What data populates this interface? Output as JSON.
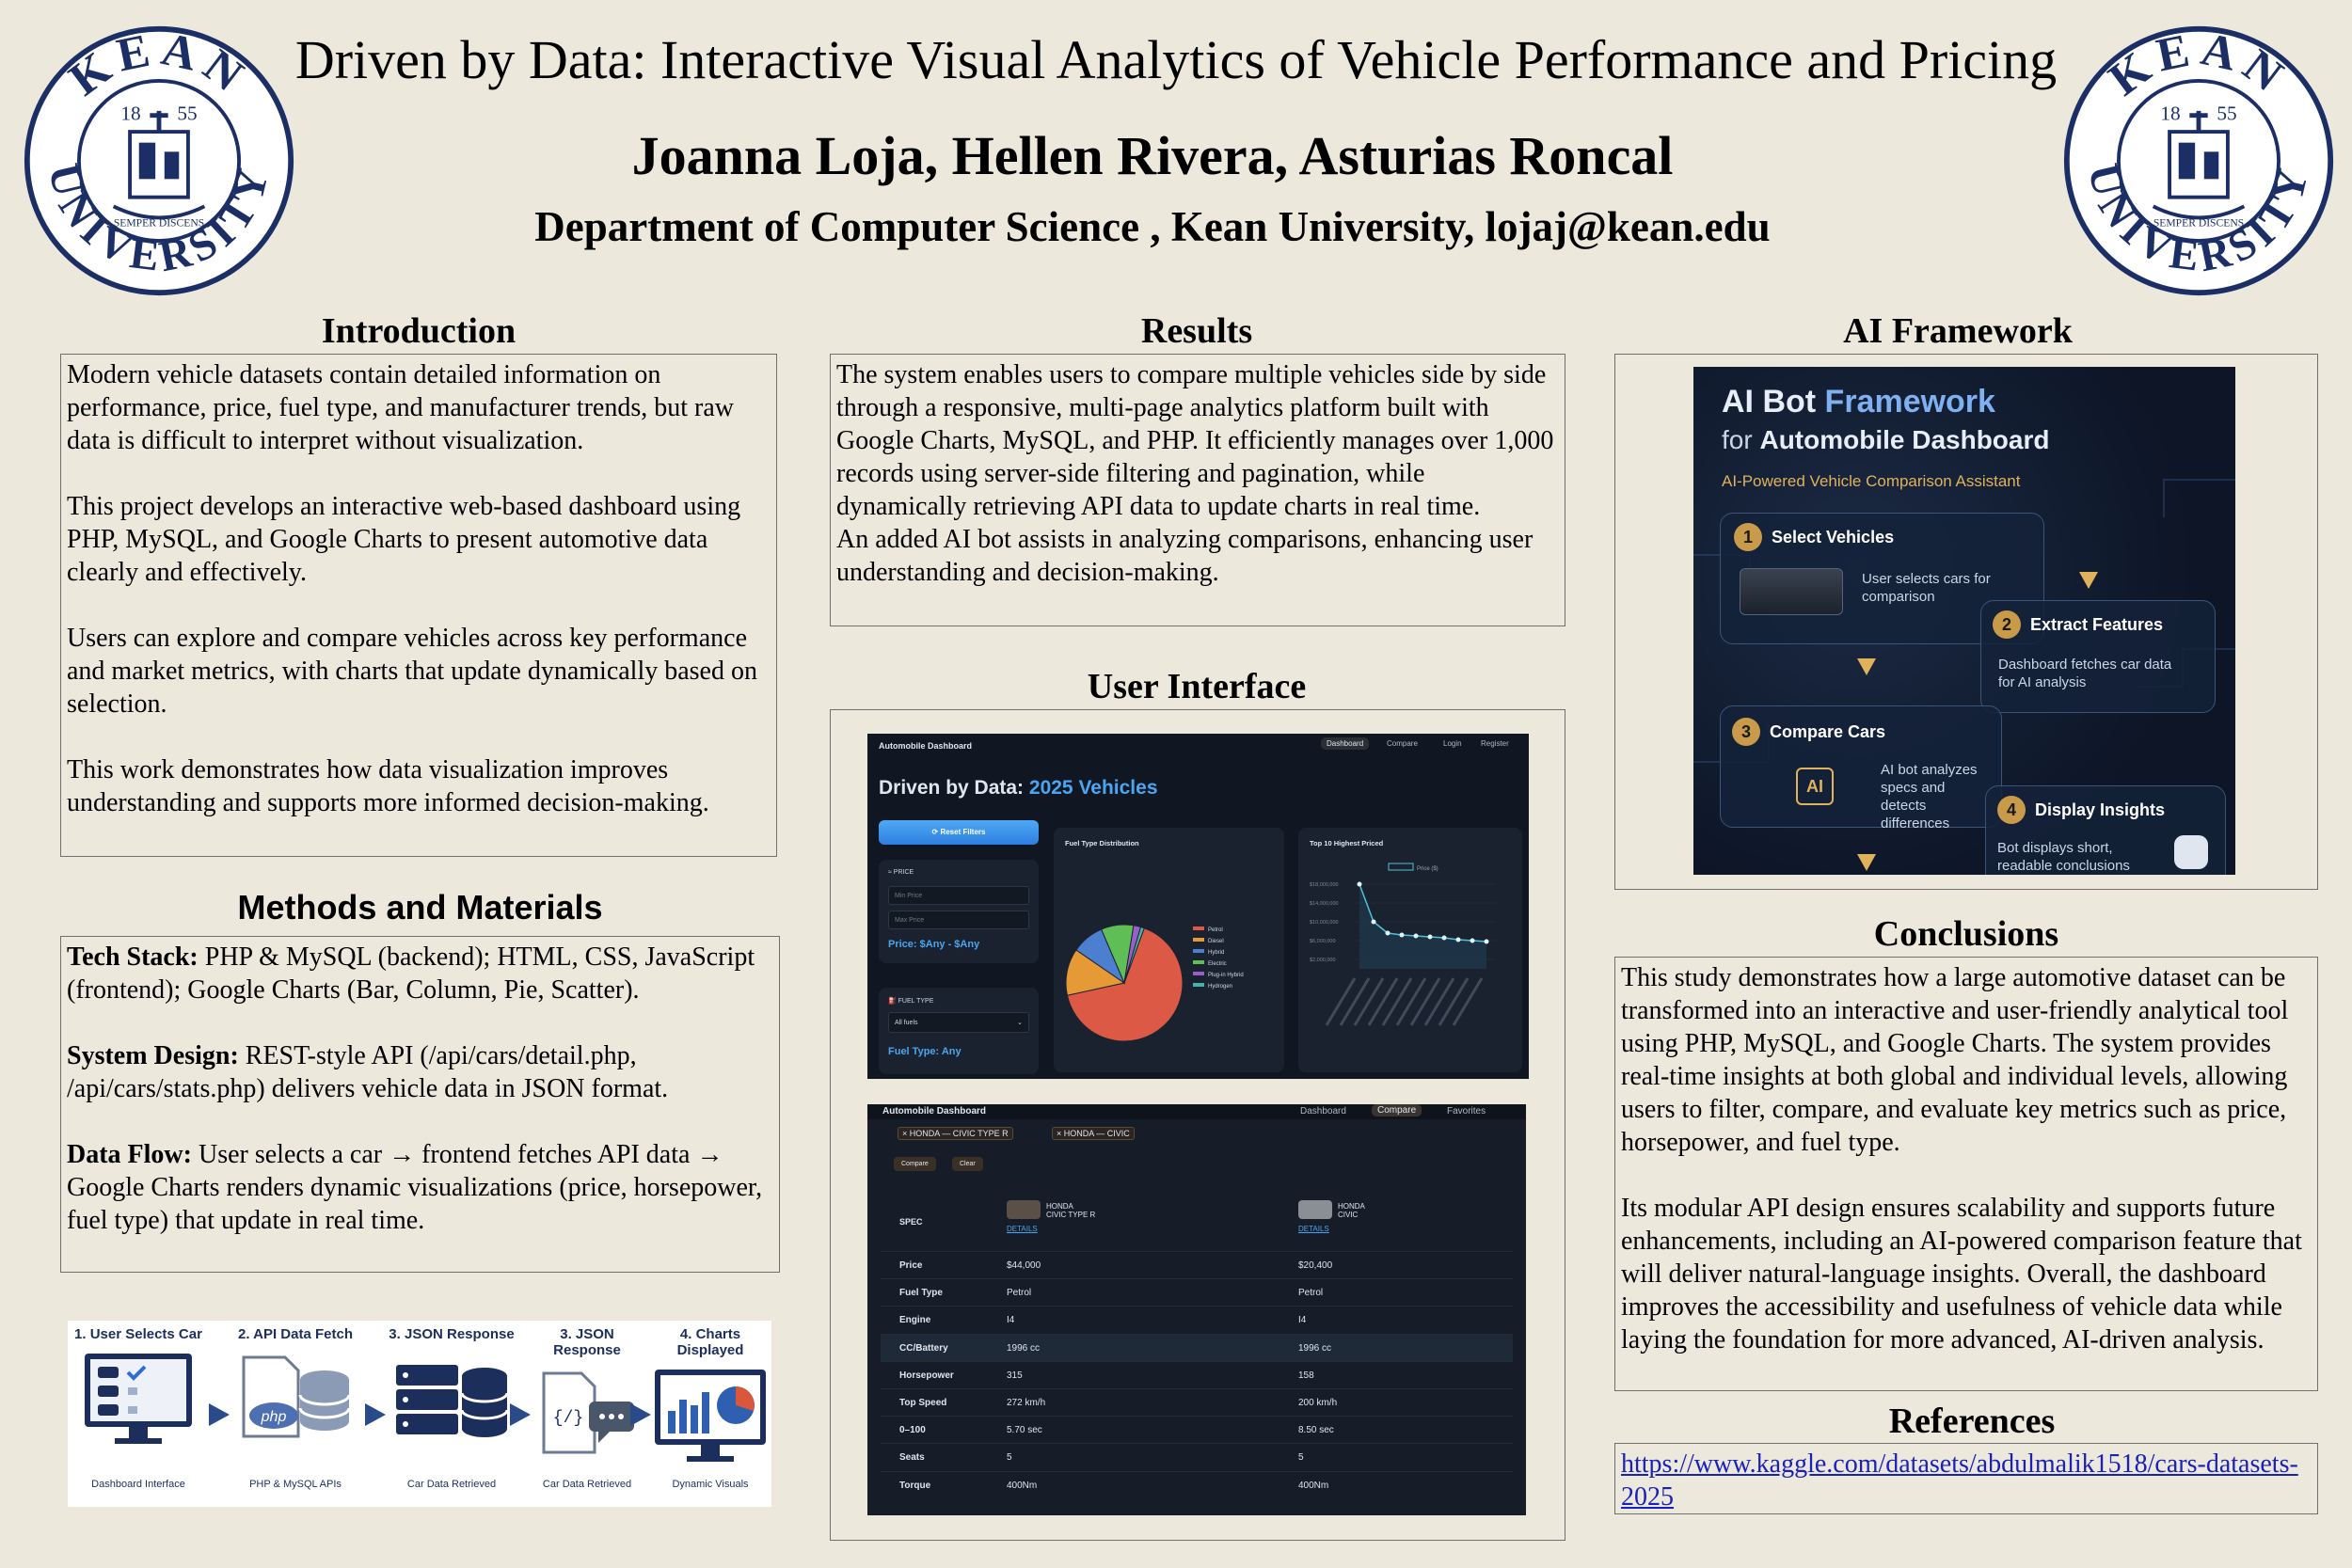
{
  "header": {
    "title": "Driven by Data: Interactive Visual Analytics of Vehicle Performance and Pricing",
    "authors": "Joanna Loja, Hellen Rivera, Asturias Roncal",
    "affiliation": "Department of Computer Science , Kean University, lojaj@kean.edu",
    "logo": {
      "word_top": "KEAN",
      "word_bottom": "UNIVERSITY",
      "year_left": "18",
      "year_right": "55",
      "motto": "SEMPER DISCENS"
    }
  },
  "introduction": {
    "heading": "Introduction",
    "paragraphs": [
      "Modern vehicle datasets contain detailed information on performance, price, fuel type, and manufacturer trends, but raw data is difficult to interpret without visualization.",
      "This project develops an interactive web-based dashboard using PHP, MySQL, and Google Charts to present automotive data clearly and effectively.",
      "Users can explore and compare vehicles across key performance and market metrics, with charts that update dynamically based on selection.",
      "This work demonstrates how data visualization improves understanding and supports more informed decision-making."
    ]
  },
  "methods": {
    "heading": "Methods and Materials",
    "items": [
      {
        "label": "Tech Stack:",
        "text": " PHP & MySQL (backend); HTML, CSS, JavaScript (frontend); Google Charts (Bar, Column, Pie, Scatter)."
      },
      {
        "label": "System Design:",
        "text": " REST-style API (/api/cars/detail.php, /api/cars/stats.php) delivers vehicle data in JSON format."
      },
      {
        "label": "Data Flow:",
        "text": " User selects a car → frontend fetches API data → Google Charts renders dynamic visualizations (price, horsepower, fuel type) that update in real time."
      }
    ],
    "flow": [
      {
        "title": "1. User Selects Car",
        "caption": "Dashboard Interface"
      },
      {
        "title": "2. API Data Fetch",
        "caption": "PHP & MySQL APIs"
      },
      {
        "title": "3. JSON Response",
        "caption": "Car Data Retrieved"
      },
      {
        "title": "3. JSON Response",
        "caption": "Car Data Retrieved"
      },
      {
        "title": "4. Charts Displayed",
        "caption": "Dynamic Visuals"
      }
    ],
    "flow_php_label": "php",
    "flow_json_label": "{/}"
  },
  "results": {
    "heading": "Results",
    "paragraphs": [
      "The system enables users to compare multiple vehicles side by side through a responsive, multi-page analytics platform built with Google Charts, MySQL, and PHP. It efficiently manages over 1,000 records using server-side filtering and pagination, while dynamically retrieving API data to update charts in real time.",
      "An added AI bot assists in analyzing comparisons, enhancing user understanding and decision-making."
    ]
  },
  "ui": {
    "heading": "User Interface",
    "dash1": {
      "brand": "Automobile Dashboard",
      "nav": [
        "Dashboard",
        "Compare",
        "Login",
        "Register"
      ],
      "title_plain": "Driven by Data: ",
      "title_accent": "2025 Vehicles",
      "reset_button": "⟳ Reset Filters",
      "price_label": "≈ PRICE",
      "min_placeholder": "Min Price",
      "max_placeholder": "Max Price",
      "price_summary": "Price: $Any - $Any",
      "fuel_label": "⛽ FUEL TYPE",
      "fuel_select": "All fuels",
      "fuel_summary": "Fuel Type: Any",
      "pie_title": "Fuel Type Distribution",
      "pie_legend": [
        {
          "name": "Petrol",
          "color": "#dc5a45"
        },
        {
          "name": "Diesel",
          "color": "#e59a35"
        },
        {
          "name": "Hybrid",
          "color": "#4d7fd0"
        },
        {
          "name": "Electric",
          "color": "#5fbf56"
        },
        {
          "name": "Plug-in Hybrid",
          "color": "#9a5fc6"
        },
        {
          "name": "Hydrogen",
          "color": "#46b3a8"
        }
      ],
      "line_title": "Top 10 Highest Priced",
      "line_legend": "Price ($)",
      "line_ticks": [
        "$18,000,000",
        "$14,000,000",
        "$10,000,000",
        "$6,000,000",
        "$2,000,000"
      ]
    },
    "dash2": {
      "brand": "Automobile Dashboard",
      "nav": [
        "Dashboard",
        "Compare",
        "Favorites"
      ],
      "chips": [
        "× HONDA — CIVIC TYPE R",
        "× HONDA — CIVIC"
      ],
      "compare_button": "Compare",
      "clear_button": "Clear",
      "spec_header": "SPEC",
      "car1": {
        "make": "HONDA",
        "model": "CIVIC TYPE R",
        "link": "DETAILS"
      },
      "car2": {
        "make": "HONDA",
        "model": "CIVIC",
        "link": "DETAILS"
      },
      "rows": [
        {
          "spec": "Price",
          "a": "$44,000",
          "b": "$20,400"
        },
        {
          "spec": "Fuel Type",
          "a": "Petrol",
          "b": "Petrol"
        },
        {
          "spec": "Engine",
          "a": "I4",
          "b": "I4"
        },
        {
          "spec": "CC/Battery",
          "a": "1996 cc",
          "b": "1996 cc"
        },
        {
          "spec": "Horsepower",
          "a": "315",
          "b": "158"
        },
        {
          "spec": "Top Speed",
          "a": "272 km/h",
          "b": "200 km/h"
        },
        {
          "spec": "0–100",
          "a": "5.70 sec",
          "b": "8.50 sec"
        },
        {
          "spec": "Seats",
          "a": "5",
          "b": "5"
        },
        {
          "spec": "Torque",
          "a": "400Nm",
          "b": "400Nm"
        }
      ]
    }
  },
  "ai": {
    "heading": "AI Framework",
    "title_a": "AI Bot ",
    "title_b": "Framework",
    "title_c": "for ",
    "title_d": "Automobile Dashboard",
    "subtitle": "AI-Powered Vehicle Comparison Assistant",
    "steps": [
      {
        "n": "1",
        "title": "Select Vehicles",
        "text": "User selects cars for comparison"
      },
      {
        "n": "2",
        "title": "Extract Features",
        "text": "Dashboard fetches car data for AI analysis"
      },
      {
        "n": "3",
        "title": "Compare Cars",
        "text": "AI bot analyzes specs and detects differences"
      },
      {
        "n": "4",
        "title": "Display Insights",
        "text": "Bot displays short, readable conclusions"
      }
    ],
    "chip_label": "AI"
  },
  "conclusions": {
    "heading": "Conclusions",
    "paragraphs": [
      "This study demonstrates how a large automotive dataset can be transformed into an interactive and user-friendly analytical tool using PHP, MySQL, and Google Charts. The system provides real-time insights at both global and individual levels, allowing users to filter, compare, and evaluate key metrics such as price, horsepower, and fuel type.",
      "Its modular API design ensures scalability and supports future enhancements, including an AI-powered comparison feature that will deliver natural-language insights. Overall, the dashboard improves the accessibility and usefulness of vehicle data while laying the foundation for more advanced, AI-driven analysis."
    ]
  },
  "references": {
    "heading": "References",
    "link": "https://www.kaggle.com/datasets/abdulmalik1518/cars-datasets-2025"
  }
}
